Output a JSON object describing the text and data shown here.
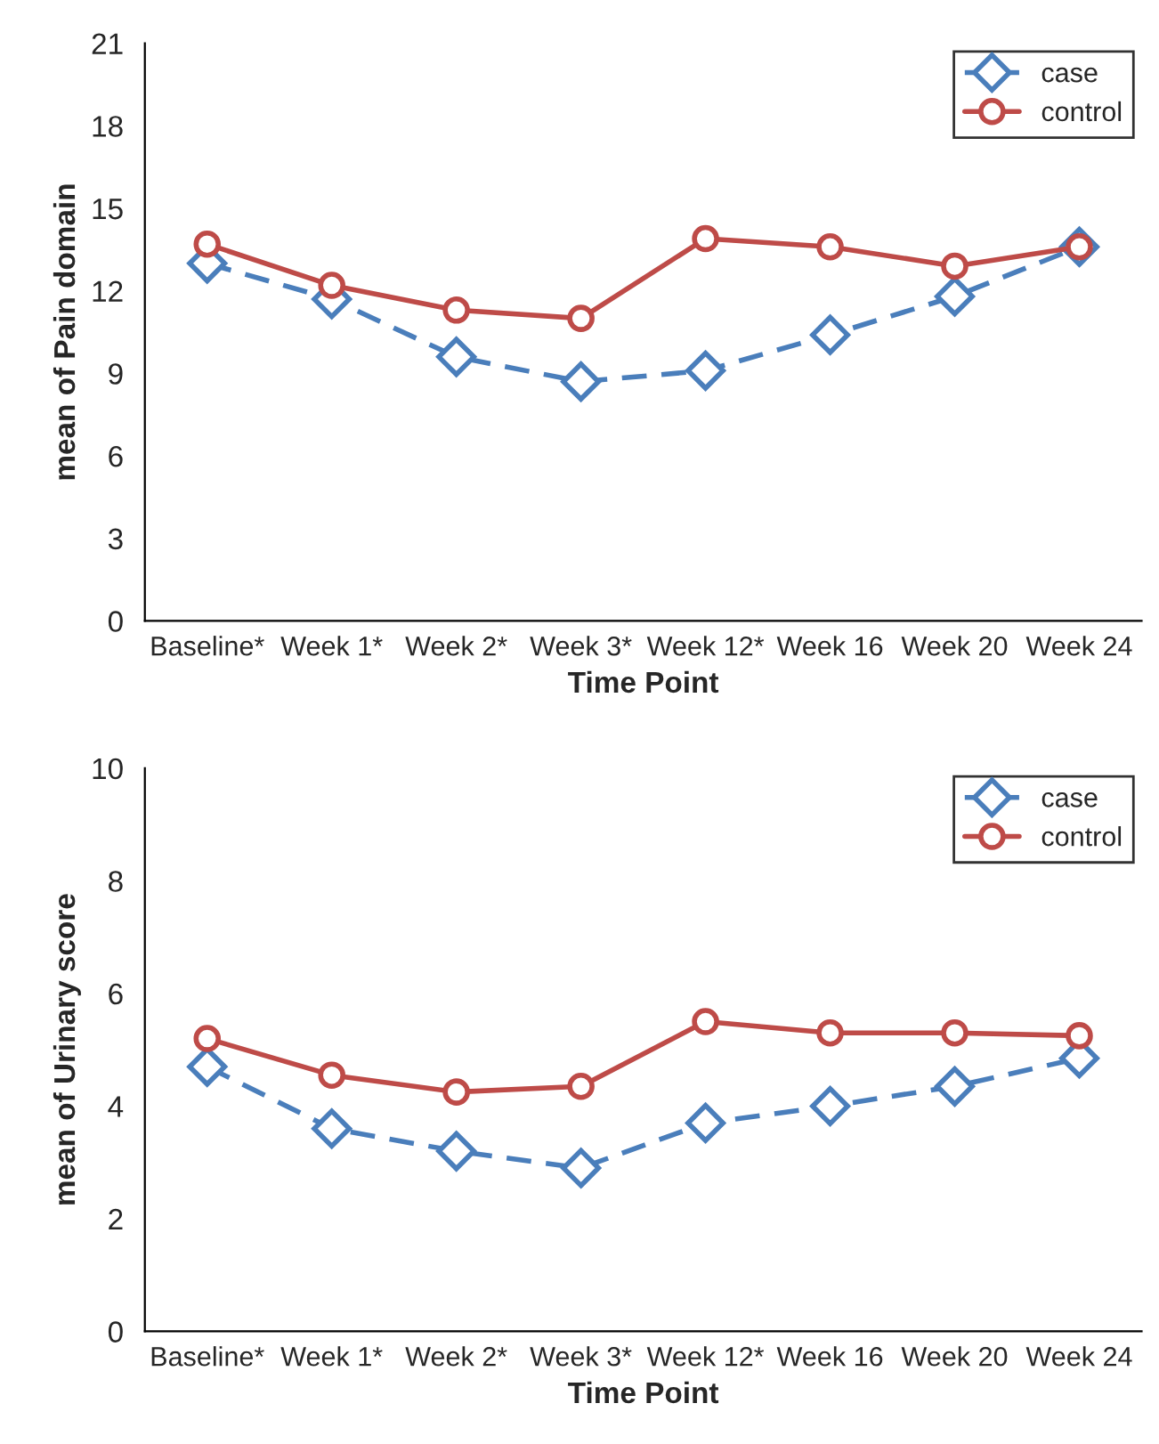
{
  "chart_data": [
    {
      "type": "line",
      "xlabel": "Time Point",
      "ylabel": "mean of Pain domain",
      "categories": [
        "Baseline*",
        "Week 1*",
        "Week 2*",
        "Week 3*",
        "Week 12*",
        "Week 16",
        "Week 20",
        "Week 24"
      ],
      "ylim": [
        0,
        21
      ],
      "yticks": [
        0,
        3,
        6,
        9,
        12,
        15,
        18,
        21
      ],
      "grid": false,
      "legend": "top right",
      "series": [
        {
          "name": "case",
          "color": "#4a7ebb",
          "marker": "diamond",
          "line_style": "dashed",
          "values": [
            13.0,
            11.7,
            9.6,
            8.7,
            9.1,
            10.4,
            11.8,
            13.6
          ]
        },
        {
          "name": "control",
          "color": "#be4b48",
          "marker": "circle",
          "line_style": "solid",
          "values": [
            13.7,
            12.2,
            11.3,
            11.0,
            13.9,
            13.6,
            12.9,
            13.6
          ]
        }
      ]
    },
    {
      "type": "line",
      "xlabel": "Time Point",
      "ylabel": "mean of Urinary score",
      "categories": [
        "Baseline*",
        "Week 1*",
        "Week 2*",
        "Week 3*",
        "Week 12*",
        "Week 16",
        "Week 20",
        "Week 24"
      ],
      "ylim": [
        0,
        10
      ],
      "yticks": [
        0,
        2,
        4,
        6,
        8,
        10
      ],
      "grid": false,
      "legend": "top right",
      "series": [
        {
          "name": "case",
          "color": "#4a7ebb",
          "marker": "diamond",
          "line_style": "dashed",
          "values": [
            4.7,
            3.6,
            3.2,
            2.9,
            3.7,
            4.0,
            4.35,
            4.85
          ]
        },
        {
          "name": "control",
          "color": "#be4b48",
          "marker": "circle",
          "line_style": "solid",
          "values": [
            5.2,
            4.55,
            4.25,
            4.35,
            5.5,
            5.3,
            5.3,
            5.25
          ]
        }
      ]
    }
  ]
}
